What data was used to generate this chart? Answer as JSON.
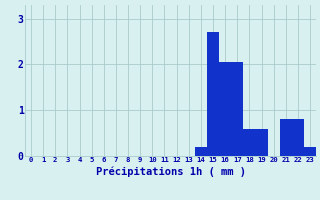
{
  "hours": [
    0,
    1,
    2,
    3,
    4,
    5,
    6,
    7,
    8,
    9,
    10,
    11,
    12,
    13,
    14,
    15,
    16,
    17,
    18,
    19,
    20,
    21,
    22,
    23
  ],
  "values": [
    0,
    0,
    0,
    0,
    0,
    0,
    0,
    0,
    0,
    0,
    0,
    0,
    0,
    0,
    0.2,
    2.7,
    2.05,
    2.05,
    0.6,
    0.6,
    0.0,
    0.8,
    0.8,
    0.2
  ],
  "bar_color": "#1133cc",
  "background_color": "#d8f0f0",
  "grid_color": "#aacccc",
  "xlabel": "Précipitations 1h ( mm )",
  "xlabel_color": "#0000aa",
  "tick_color": "#0000aa",
  "ylim": [
    0,
    3.3
  ],
  "yticks": [
    0,
    1,
    2,
    3
  ],
  "bar_width": 1.0
}
